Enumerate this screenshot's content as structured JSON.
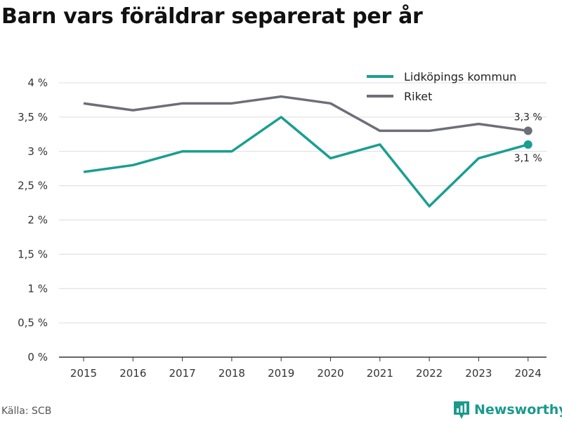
{
  "header": {
    "title": "Barn vars föräldrar separerat per år"
  },
  "footer": {
    "source": "Källa: SCB",
    "brand": "Newsworthy"
  },
  "colors": {
    "lidkoping": "#1a9e91",
    "riket": "#6e6e78",
    "grid": "#dcdcdc",
    "brand": "#1a9a8c"
  },
  "chart_data": {
    "type": "line",
    "x": [
      "2015",
      "2016",
      "2017",
      "2018",
      "2019",
      "2020",
      "2021",
      "2022",
      "2023",
      "2024"
    ],
    "series": [
      {
        "name": "Lidköpings kommun",
        "values": [
          2.7,
          2.8,
          3.0,
          3.0,
          3.5,
          2.9,
          3.1,
          2.2,
          2.9,
          3.1
        ],
        "end_label": "3,1 %"
      },
      {
        "name": "Riket",
        "values": [
          3.7,
          3.6,
          3.7,
          3.7,
          3.8,
          3.7,
          3.3,
          3.3,
          3.4,
          3.3
        ],
        "end_label": "3,3 %"
      }
    ],
    "y_ticks": [
      "0 %",
      "0,5 %",
      "1 %",
      "1,5 %",
      "2 %",
      "2,5 %",
      "3 %",
      "3,5 %",
      "4 %"
    ],
    "ylim": [
      0,
      4
    ],
    "grid": true,
    "legend": "top-right"
  }
}
